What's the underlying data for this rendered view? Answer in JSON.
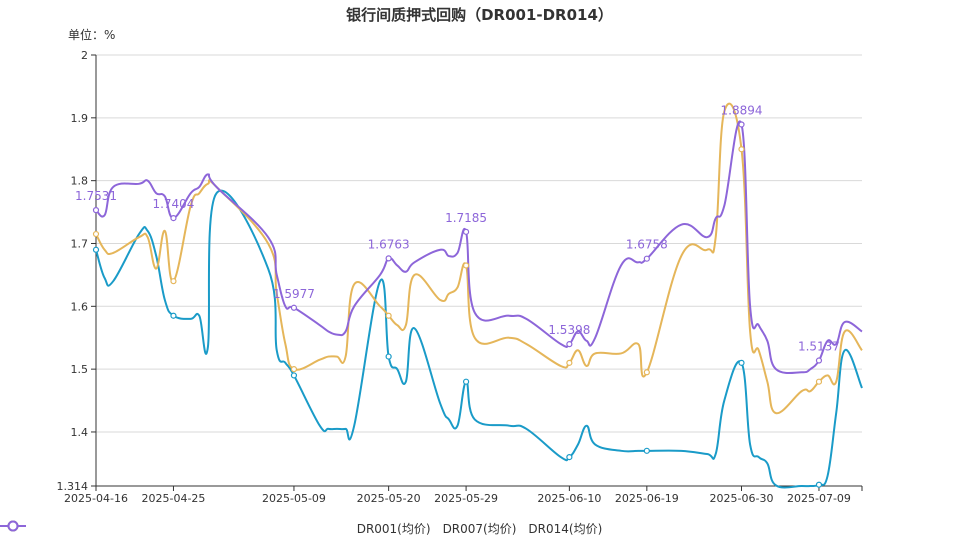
{
  "chart_data": {
    "type": "line",
    "title": "银行间质押式回购（DR001-DR014）",
    "unit_label": "单位：%",
    "ylim": [
      1.314,
      2
    ],
    "yticks": [
      "2",
      "1.9",
      "1.8",
      "1.7",
      "1.6",
      "1.5",
      "1.4",
      "1.314"
    ],
    "x_range": [
      "2025-04-16",
      "2025-07-14"
    ],
    "xticks": [
      "2025-04-16",
      "2025-04-25",
      "2025-05-09",
      "2025-05-20",
      "2025-05-29",
      "2025-06-10",
      "2025-06-19",
      "2025-06-30",
      "2025-07-09"
    ],
    "grid": "horizontal",
    "legend_position": "bottom",
    "series": [
      {
        "name": "DR001(均价)",
        "color": "#1a9bc8",
        "points": [
          [
            "2025-04-16",
            1.69
          ],
          [
            "2025-04-17",
            1.645
          ],
          [
            "2025-04-18",
            1.64
          ],
          [
            "2025-04-21",
            1.715
          ],
          [
            "2025-04-22",
            1.72
          ],
          [
            "2025-04-23",
            1.68
          ],
          [
            "2025-04-24",
            1.61
          ],
          [
            "2025-04-25",
            1.585
          ],
          [
            "2025-04-27",
            1.58
          ],
          [
            "2025-04-28",
            1.585
          ],
          [
            "2025-04-29",
            1.535
          ],
          [
            "2025-04-30",
            1.78
          ],
          [
            "2025-05-06",
            1.66
          ],
          [
            "2025-05-07",
            1.53
          ],
          [
            "2025-05-08",
            1.51
          ],
          [
            "2025-05-09",
            1.49
          ],
          [
            "2025-05-12",
            1.41
          ],
          [
            "2025-05-13",
            1.405
          ],
          [
            "2025-05-14",
            1.405
          ],
          [
            "2025-05-15",
            1.405
          ],
          [
            "2025-05-16",
            1.41
          ],
          [
            "2025-05-19",
            1.64
          ],
          [
            "2025-05-20",
            1.52
          ],
          [
            "2025-05-21",
            1.5
          ],
          [
            "2025-05-22",
            1.48
          ],
          [
            "2025-05-23",
            1.565
          ],
          [
            "2025-05-26",
            1.445
          ],
          [
            "2025-05-27",
            1.42
          ],
          [
            "2025-05-28",
            1.41
          ],
          [
            "2025-05-29",
            1.48
          ],
          [
            "2025-05-30",
            1.42
          ],
          [
            "2025-06-03",
            1.41
          ],
          [
            "2025-06-05",
            1.405
          ],
          [
            "2025-06-09",
            1.36
          ],
          [
            "2025-06-10",
            1.36
          ],
          [
            "2025-06-11",
            1.38
          ],
          [
            "2025-06-12",
            1.41
          ],
          [
            "2025-06-13",
            1.38
          ],
          [
            "2025-06-16",
            1.37
          ],
          [
            "2025-06-18",
            1.37
          ],
          [
            "2025-06-19",
            1.37
          ],
          [
            "2025-06-23",
            1.37
          ],
          [
            "2025-06-26",
            1.365
          ],
          [
            "2025-06-27",
            1.365
          ],
          [
            "2025-06-28",
            1.45
          ],
          [
            "2025-06-30",
            1.51
          ],
          [
            "2025-07-01",
            1.38
          ],
          [
            "2025-07-02",
            1.36
          ],
          [
            "2025-07-03",
            1.35
          ],
          [
            "2025-07-04",
            1.315
          ],
          [
            "2025-07-07",
            1.314
          ],
          [
            "2025-07-08",
            1.314
          ],
          [
            "2025-07-09",
            1.316
          ],
          [
            "2025-07-10",
            1.33
          ],
          [
            "2025-07-11",
            1.43
          ],
          [
            "2025-07-12",
            1.53
          ],
          [
            "2025-07-14",
            1.47
          ]
        ]
      },
      {
        "name": "DR007(均价)",
        "color": "#e5b65a",
        "points": [
          [
            "2025-04-16",
            1.715
          ],
          [
            "2025-04-17",
            1.69
          ],
          [
            "2025-04-18",
            1.685
          ],
          [
            "2025-04-21",
            1.71
          ],
          [
            "2025-04-22",
            1.71
          ],
          [
            "2025-04-23",
            1.66
          ],
          [
            "2025-04-24",
            1.72
          ],
          [
            "2025-04-25",
            1.64
          ],
          [
            "2025-04-27",
            1.76
          ],
          [
            "2025-04-28",
            1.78
          ],
          [
            "2025-04-29",
            1.795
          ],
          [
            "2025-04-30",
            1.79
          ],
          [
            "2025-05-06",
            1.7
          ],
          [
            "2025-05-07",
            1.62
          ],
          [
            "2025-05-08",
            1.54
          ],
          [
            "2025-05-09",
            1.5
          ],
          [
            "2025-05-12",
            1.515
          ],
          [
            "2025-05-13",
            1.52
          ],
          [
            "2025-05-14",
            1.52
          ],
          [
            "2025-05-15",
            1.52
          ],
          [
            "2025-05-16",
            1.635
          ],
          [
            "2025-05-19",
            1.6
          ],
          [
            "2025-05-20",
            1.585
          ],
          [
            "2025-05-21",
            1.57
          ],
          [
            "2025-05-22",
            1.57
          ],
          [
            "2025-05-23",
            1.65
          ],
          [
            "2025-05-26",
            1.61
          ],
          [
            "2025-05-27",
            1.62
          ],
          [
            "2025-05-28",
            1.63
          ],
          [
            "2025-05-29",
            1.665
          ],
          [
            "2025-05-30",
            1.55
          ],
          [
            "2025-06-03",
            1.55
          ],
          [
            "2025-06-05",
            1.54
          ],
          [
            "2025-06-09",
            1.505
          ],
          [
            "2025-06-10",
            1.51
          ],
          [
            "2025-06-11",
            1.53
          ],
          [
            "2025-06-12",
            1.505
          ],
          [
            "2025-06-13",
            1.525
          ],
          [
            "2025-06-16",
            1.525
          ],
          [
            "2025-06-18",
            1.54
          ],
          [
            "2025-06-19",
            1.495
          ],
          [
            "2025-06-23",
            1.68
          ],
          [
            "2025-06-26",
            1.69
          ],
          [
            "2025-06-27",
            1.71
          ],
          [
            "2025-06-28",
            1.91
          ],
          [
            "2025-06-30",
            1.85
          ],
          [
            "2025-07-01",
            1.56
          ],
          [
            "2025-07-02",
            1.53
          ],
          [
            "2025-07-03",
            1.48
          ],
          [
            "2025-07-04",
            1.43
          ],
          [
            "2025-07-07",
            1.465
          ],
          [
            "2025-07-08",
            1.465
          ],
          [
            "2025-07-09",
            1.48
          ],
          [
            "2025-07-10",
            1.49
          ],
          [
            "2025-07-11",
            1.48
          ],
          [
            "2025-07-12",
            1.56
          ],
          [
            "2025-07-14",
            1.53
          ]
        ]
      },
      {
        "name": "DR014(均价)",
        "color": "#8d66d9",
        "points": [
          [
            "2025-04-16",
            1.7531
          ],
          [
            "2025-04-17",
            1.745
          ],
          [
            "2025-04-18",
            1.79
          ],
          [
            "2025-04-21",
            1.795
          ],
          [
            "2025-04-22",
            1.8
          ],
          [
            "2025-04-23",
            1.78
          ],
          [
            "2025-04-24",
            1.775
          ],
          [
            "2025-04-25",
            1.7404
          ],
          [
            "2025-04-27",
            1.78
          ],
          [
            "2025-04-28",
            1.79
          ],
          [
            "2025-04-29",
            1.81
          ],
          [
            "2025-04-30",
            1.79
          ],
          [
            "2025-05-06",
            1.71
          ],
          [
            "2025-05-07",
            1.65
          ],
          [
            "2025-05-08",
            1.6
          ],
          [
            "2025-05-09",
            1.5977
          ],
          [
            "2025-05-12",
            1.57
          ],
          [
            "2025-05-13",
            1.56
          ],
          [
            "2025-05-14",
            1.555
          ],
          [
            "2025-05-15",
            1.56
          ],
          [
            "2025-05-16",
            1.6
          ],
          [
            "2025-05-19",
            1.65
          ],
          [
            "2025-05-20",
            1.6763
          ],
          [
            "2025-05-21",
            1.665
          ],
          [
            "2025-05-22",
            1.655
          ],
          [
            "2025-05-23",
            1.67
          ],
          [
            "2025-05-26",
            1.69
          ],
          [
            "2025-05-27",
            1.68
          ],
          [
            "2025-05-28",
            1.685
          ],
          [
            "2025-05-29",
            1.7185
          ],
          [
            "2025-05-30",
            1.59
          ],
          [
            "2025-06-03",
            1.585
          ],
          [
            "2025-06-05",
            1.58
          ],
          [
            "2025-06-09",
            1.54
          ],
          [
            "2025-06-10",
            1.5398
          ],
          [
            "2025-06-11",
            1.56
          ],
          [
            "2025-06-12",
            1.545
          ],
          [
            "2025-06-13",
            1.55
          ],
          [
            "2025-06-16",
            1.665
          ],
          [
            "2025-06-18",
            1.67
          ],
          [
            "2025-06-19",
            1.6758
          ],
          [
            "2025-06-23",
            1.73
          ],
          [
            "2025-06-26",
            1.71
          ],
          [
            "2025-06-27",
            1.74
          ],
          [
            "2025-06-28",
            1.76
          ],
          [
            "2025-06-30",
            1.8894
          ],
          [
            "2025-07-01",
            1.6
          ],
          [
            "2025-07-02",
            1.57
          ],
          [
            "2025-07-03",
            1.545
          ],
          [
            "2025-07-04",
            1.5
          ],
          [
            "2025-07-07",
            1.495
          ],
          [
            "2025-07-08",
            1.5
          ],
          [
            "2025-07-09",
            1.5137
          ],
          [
            "2025-07-10",
            1.545
          ],
          [
            "2025-07-11",
            1.54
          ],
          [
            "2025-07-12",
            1.575
          ],
          [
            "2025-07-14",
            1.56
          ]
        ]
      }
    ],
    "annotations": [
      {
        "series": 2,
        "x": "2025-04-16",
        "y": 1.7531,
        "text": "1.7531"
      },
      {
        "series": 2,
        "x": "2025-04-25",
        "y": 1.7404,
        "text": "1.7404"
      },
      {
        "series": 2,
        "x": "2025-05-09",
        "y": 1.5977,
        "text": "1.5977"
      },
      {
        "series": 2,
        "x": "2025-05-20",
        "y": 1.6763,
        "text": "1.6763"
      },
      {
        "series": 2,
        "x": "2025-05-29",
        "y": 1.7185,
        "text": "1.7185"
      },
      {
        "series": 2,
        "x": "2025-06-10",
        "y": 1.5398,
        "text": "1.5398"
      },
      {
        "series": 2,
        "x": "2025-06-19",
        "y": 1.6758,
        "text": "1.6758"
      },
      {
        "series": 2,
        "x": "2025-06-30",
        "y": 1.8894,
        "text": "1.8894"
      },
      {
        "series": 2,
        "x": "2025-07-09",
        "y": 1.5137,
        "text": "1.5137"
      }
    ]
  }
}
